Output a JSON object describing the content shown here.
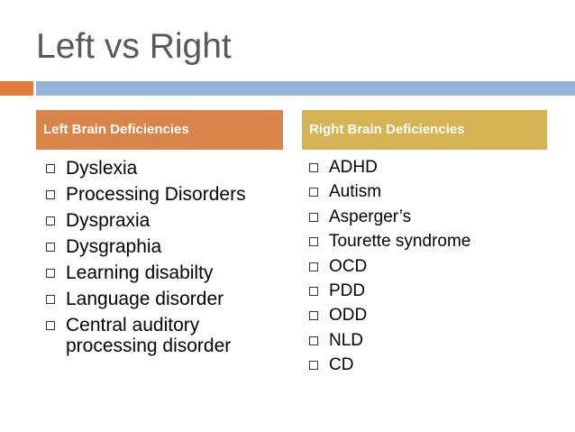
{
  "slide": {
    "title": "Left vs Right"
  },
  "left_column": {
    "header": "Left Brain Deficiencies",
    "items": [
      "Dyslexia",
      "Processing Disorders",
      "Dyspraxia",
      "Dysgraphia",
      "Learning disabilty",
      "Language disorder",
      "Central auditory processing disorder"
    ]
  },
  "right_column": {
    "header": "Right Brain Deficiencies",
    "items": [
      "ADHD",
      "Autism",
      "Asperger’s",
      "Tourette syndrome",
      "OCD",
      "PDD",
      "ODD",
      "NLD",
      "CD"
    ]
  },
  "colors": {
    "title": "#595959",
    "accent_orange": "#e07b39",
    "accent_blue": "#95b3d7",
    "left_header_bg": "#d9844a",
    "right_header_bg": "#d6b355"
  },
  "icons": {
    "bullet": "checkbox-square-icon"
  }
}
